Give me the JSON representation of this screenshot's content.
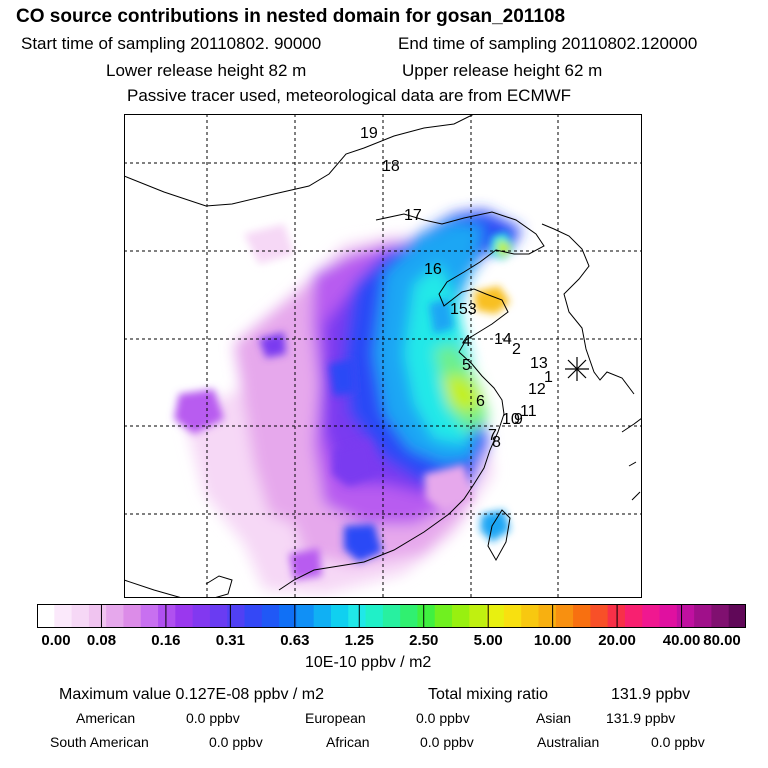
{
  "header": {
    "title": "CO  source contributions in nested domain for gosan_201108",
    "start_label": "Start time of sampling 20110802. 90000",
    "end_label": "End time of sampling 20110802.120000",
    "lower_label": "Lower release height   82 m",
    "upper_label": "Upper release height   62 m",
    "note": "Passive tracer used, meteorological data are from ECMWF"
  },
  "map": {
    "receptor_icon": "asterisk-receptor-icon",
    "plume_colors": [
      "#f6d8f6",
      "#e6a8ec",
      "#b85cf0",
      "#7a3af0",
      "#2a48f6",
      "#1aa6f4",
      "#20e8e8",
      "#6ef08a",
      "#c4f01e",
      "#f8c020"
    ],
    "trajectory_labels": [
      "19",
      "18",
      "17",
      "16",
      "153",
      "14",
      "2",
      "4",
      "13",
      "5",
      "1",
      "12",
      "6",
      "11",
      "10",
      "9",
      "7",
      "8"
    ]
  },
  "colorbar": {
    "colors": [
      "#ffffff",
      "#fbe9fb",
      "#f6d8f6",
      "#f0c4f0",
      "#e6a8ec",
      "#dc8ce8",
      "#c870f0",
      "#b050f0",
      "#9a38ee",
      "#8238f0",
      "#6a3cf2",
      "#5040f4",
      "#3448f6",
      "#2058f6",
      "#1070f6",
      "#1090f6",
      "#10b0f4",
      "#10d0f0",
      "#20e8e8",
      "#20f0c8",
      "#28f0a0",
      "#30f070",
      "#40f040",
      "#70f020",
      "#98f010",
      "#c0f010",
      "#e8f010",
      "#f8e010",
      "#f8c810",
      "#f8b010",
      "#f89010",
      "#f87010",
      "#f85028",
      "#f83048",
      "#f82070",
      "#f01890",
      "#e010a0",
      "#c010a0",
      "#a0108a",
      "#801070",
      "#600858"
    ],
    "tick_labels": [
      "0.00",
      "0.08",
      "0.16",
      "0.31",
      "0.63",
      "1.25",
      "2.50",
      "5.00",
      "10.00",
      "20.00",
      "40.00",
      "80.00"
    ],
    "unit": "10E-10 ppbv / m2"
  },
  "stats": {
    "max_label": "Maximum value  0.127E-08 ppbv / m2",
    "total_label": "Total mixing ratio",
    "total_value": "131.9 ppbv",
    "american_label": "American",
    "american_value": "0.0 ppbv",
    "european_label": "European",
    "european_value": "0.0 ppbv",
    "asian_label": "Asian",
    "asian_value": "131.9 ppbv",
    "south_american_label": "South American",
    "south_american_value": "0.0 ppbv",
    "african_label": "African",
    "african_value": "0.0 ppbv",
    "australian_label": "Australian",
    "australian_value": "0.0 ppbv"
  }
}
